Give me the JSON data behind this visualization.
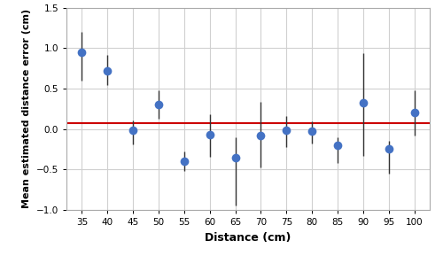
{
  "x": [
    35,
    40,
    45,
    50,
    55,
    60,
    65,
    70,
    75,
    80,
    85,
    90,
    95,
    100
  ],
  "y": [
    0.95,
    0.72,
    -0.02,
    0.3,
    -0.4,
    -0.07,
    -0.35,
    -0.08,
    -0.02,
    -0.03,
    -0.2,
    0.32,
    -0.25,
    0.2
  ],
  "err_lower": [
    0.35,
    0.18,
    0.17,
    0.17,
    0.12,
    0.27,
    0.6,
    0.4,
    0.2,
    0.15,
    0.22,
    0.65,
    0.3,
    0.28
  ],
  "err_upper": [
    0.25,
    0.2,
    0.13,
    0.18,
    0.12,
    0.25,
    0.25,
    0.42,
    0.18,
    0.13,
    0.1,
    0.62,
    0.1,
    0.28
  ],
  "hline_y": 0.07,
  "hline_color": "#cc0000",
  "marker_color": "#4472C4",
  "marker_size": 7,
  "xlabel": "Distance (cm)",
  "ylabel": "Mean estimated distance error (cm)",
  "xlim": [
    32,
    103
  ],
  "ylim": [
    -1.0,
    1.5
  ],
  "yticks": [
    -1.0,
    -0.5,
    0.0,
    0.5,
    1.0,
    1.5
  ],
  "xticks": [
    35,
    40,
    45,
    50,
    55,
    60,
    65,
    70,
    75,
    80,
    85,
    90,
    95,
    100
  ],
  "grid_color": "#d0d0d0",
  "background_color": "#ffffff",
  "errorbar_color": "#333333",
  "errorbar_linewidth": 1.0,
  "capsize": 2.5,
  "tick_fontsize": 7.5,
  "xlabel_fontsize": 9,
  "ylabel_fontsize": 8
}
